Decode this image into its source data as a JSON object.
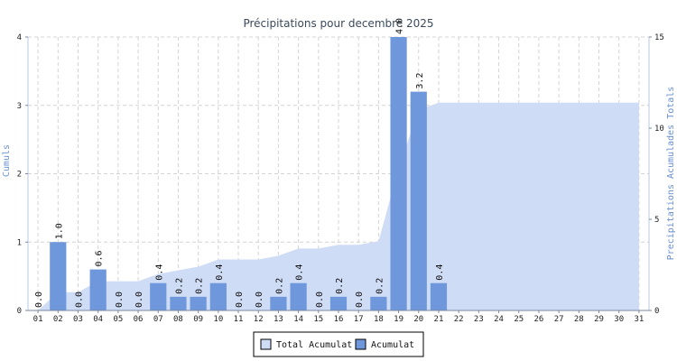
{
  "chart_data": {
    "type": "bar",
    "title": "Précipitations pour decembre 2025",
    "ylabel_left": "Cumuls",
    "ylabel_right": "Precipitations Acumulades Totals",
    "ylim_left": [
      0,
      4
    ],
    "ylim_right": [
      0,
      15
    ],
    "yticks_left": [
      "0",
      "1",
      "2",
      "3",
      "4"
    ],
    "yticks_right": [
      "0",
      "5",
      "10",
      "15"
    ],
    "grid": true,
    "legend_position": "bottom",
    "categories": [
      "01",
      "02",
      "03",
      "04",
      "05",
      "06",
      "07",
      "08",
      "09",
      "10",
      "11",
      "12",
      "13",
      "14",
      "15",
      "16",
      "17",
      "18",
      "19",
      "20",
      "21",
      "22",
      "23",
      "24",
      "25",
      "26",
      "27",
      "28",
      "29",
      "30",
      "31"
    ],
    "series": [
      {
        "name": "Total Acumulat",
        "type": "area",
        "axis": "right",
        "color": "#cfdcf6",
        "values": [
          0,
          1.0,
          1.0,
          1.6,
          1.6,
          1.6,
          2.0,
          2.2,
          2.4,
          2.8,
          2.8,
          2.8,
          3.0,
          3.4,
          3.4,
          3.6,
          3.6,
          3.8,
          7.8,
          11.0,
          11.4,
          11.4,
          11.4,
          11.4,
          11.4,
          11.4,
          11.4,
          11.4,
          11.4,
          11.4,
          11.4
        ]
      },
      {
        "name": "Acumulat",
        "type": "bar",
        "axis": "left",
        "color": "#6f97db",
        "values": [
          0.0,
          1.0,
          0.0,
          0.6,
          0.0,
          0.0,
          0.4,
          0.2,
          0.2,
          0.4,
          0.0,
          0.0,
          0.2,
          0.4,
          0.0,
          0.2,
          0.0,
          0.2,
          4.0,
          3.2,
          0.4,
          null,
          null,
          null,
          null,
          null,
          null,
          null,
          null,
          null,
          null
        ],
        "labels": [
          "0.0",
          "1.0",
          "0.0",
          "0.6",
          "0.0",
          "0.0",
          "0.4",
          "0.2",
          "0.2",
          "0.4",
          "0.0",
          "0.0",
          "0.2",
          "0.4",
          "0.0",
          "0.2",
          "0.0",
          "0.2",
          "4.0",
          "3.2",
          "0.4",
          "",
          "",
          "",
          "",
          "",
          "",
          "",
          "",
          "",
          ""
        ]
      }
    ]
  }
}
